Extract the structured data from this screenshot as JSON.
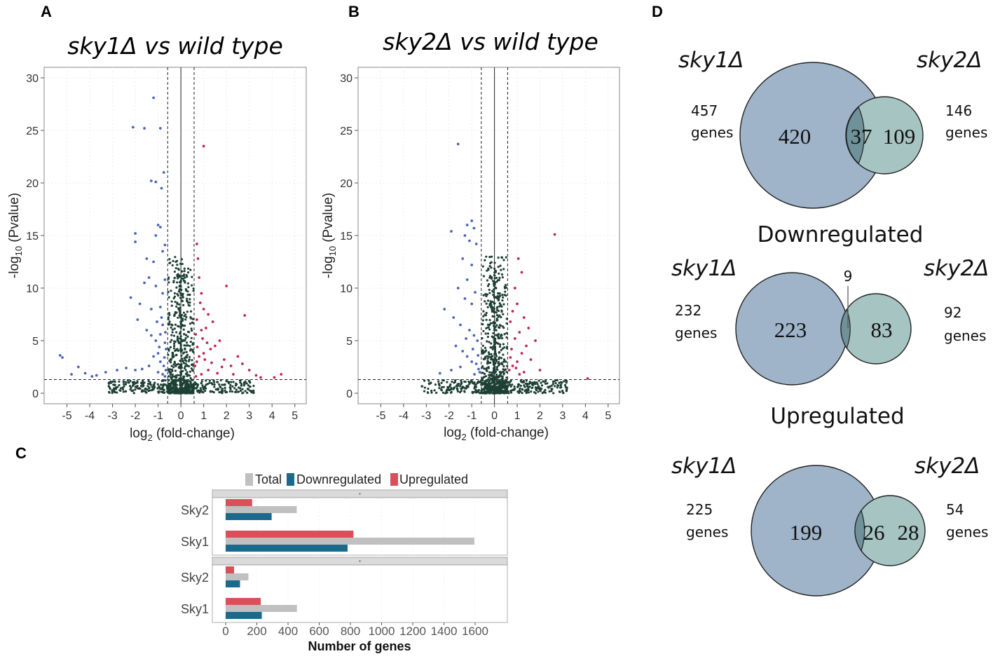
{
  "panels": {
    "a_label": "A",
    "b_label": "B",
    "c_label": "C",
    "d_label": "D"
  },
  "volcano": {
    "a_title": "sky1Δ vs wild type",
    "b_title": "sky2Δ vs wild type",
    "ylabel_pre": "-log",
    "ylabel_sub": "10",
    "ylabel_post": " (Pvalue)",
    "xlabel_pre": "log",
    "xlabel_sub": "2",
    "xlabel_post": " (fold-change)"
  },
  "venn": {
    "all": {
      "left_name": "sky1Δ",
      "right_name": "sky2Δ",
      "left_total": "457",
      "left_unit": "genes",
      "right_total": "146",
      "right_unit": "genes",
      "only_left": "420",
      "overlap": "37",
      "only_right": "109"
    },
    "down": {
      "heading": "Downregulated",
      "left_name": "sky1Δ",
      "right_name": "sky2Δ",
      "left_total": "232",
      "left_unit": "genes",
      "right_total": "92",
      "right_unit": "genes",
      "only_left": "223",
      "overlap": "9",
      "only_right": "83"
    },
    "up": {
      "heading": "Upregulated",
      "left_name": "sky1Δ",
      "right_name": "sky2Δ",
      "left_total": "225",
      "left_unit": "genes",
      "right_total": "54",
      "right_unit": "genes",
      "only_left": "199",
      "overlap": "26",
      "only_right": "28"
    }
  },
  "colors": {
    "down": "#4a65b8",
    "up": "#c2245a",
    "ns": "#1e4034",
    "bar_total": "#c0c0c0",
    "bar_down": "#1a6a8c",
    "bar_up": "#d9505a",
    "venn_left": "#9fb3c9",
    "venn_right": "#a6c4c1",
    "venn_overlap": "#6f9199"
  },
  "chart_data": [
    {
      "type": "scatter",
      "title": "sky1Δ vs wild type",
      "xlabel": "log2 (fold-change)",
      "ylabel": "-log10 (Pvalue)",
      "xlim": [
        -6,
        5.5
      ],
      "ylim": [
        -1,
        31
      ],
      "xticks": [
        "-5",
        "-4",
        "-3",
        "-2",
        "-1",
        "0",
        "1",
        "2",
        "3",
        "4",
        "5"
      ],
      "yticks": [
        "0",
        "5",
        "10",
        "15",
        "20",
        "25",
        "30"
      ],
      "thresholds": {
        "x": [
          -0.58,
          0,
          0.58
        ],
        "y": 1.3
      },
      "series": [
        {
          "name": "Downregulated",
          "points": [
            [
              -1.2,
              28.1
            ],
            [
              -2.1,
              25.3
            ],
            [
              -1.6,
              25.2
            ],
            [
              -0.9,
              25.2
            ],
            [
              -0.75,
              21
            ],
            [
              -1.3,
              20.2
            ],
            [
              -1.1,
              20.1
            ],
            [
              -0.85,
              19.5
            ],
            [
              -2.0,
              15.2
            ],
            [
              -2.0,
              14.4
            ],
            [
              -1.0,
              16
            ],
            [
              -0.9,
              15.8
            ],
            [
              -1.1,
              15
            ],
            [
              -0.7,
              14.1
            ],
            [
              -0.8,
              13.5
            ],
            [
              -1.5,
              12.8
            ],
            [
              -1.2,
              12.5
            ],
            [
              -1.4,
              11
            ],
            [
              -1.6,
              10.5
            ],
            [
              -1.1,
              10.2
            ],
            [
              -2.2,
              9.1
            ],
            [
              -1.8,
              8.5
            ],
            [
              -1.3,
              8
            ],
            [
              -0.9,
              8.2
            ],
            [
              -0.8,
              9.5
            ],
            [
              -0.7,
              10.8
            ],
            [
              -1.9,
              7
            ],
            [
              -1.5,
              6
            ],
            [
              -1.3,
              5.5
            ],
            [
              -1.1,
              5
            ],
            [
              -0.9,
              5.6
            ],
            [
              -0.8,
              6.5
            ],
            [
              -0.7,
              4.8
            ],
            [
              -0.65,
              4.2
            ],
            [
              -1.0,
              3.8
            ],
            [
              -1.2,
              3.5
            ],
            [
              -0.9,
              3
            ],
            [
              -0.75,
              2.6
            ],
            [
              -0.66,
              2.2
            ],
            [
              -1.4,
              2.6
            ],
            [
              -1.7,
              2.3
            ],
            [
              -2.0,
              2.2
            ],
            [
              -2.4,
              2.4
            ],
            [
              -2.8,
              2.2
            ],
            [
              -3.3,
              2.0
            ],
            [
              -3.7,
              1.7
            ],
            [
              -4.2,
              1.9
            ],
            [
              -4.5,
              2.5
            ],
            [
              -5.3,
              3.6
            ],
            [
              -5.2,
              3.4
            ],
            [
              -4.8,
              1.8
            ],
            [
              -3.9,
              1.6
            ],
            [
              -1.0,
              2.0
            ],
            [
              -0.8,
              1.8
            ],
            [
              -0.7,
              1.6
            ],
            [
              -0.95,
              4.4
            ],
            [
              -1.05,
              6.8
            ],
            [
              -0.85,
              7.2
            ],
            [
              -0.72,
              3.4
            ],
            [
              -0.68,
              5.8
            ]
          ]
        },
        {
          "name": "Upregulated",
          "points": [
            [
              1.0,
              23.5
            ],
            [
              0.7,
              14.2
            ],
            [
              0.75,
              12.8
            ],
            [
              0.8,
              11
            ],
            [
              0.9,
              9.5
            ],
            [
              0.85,
              8.6
            ],
            [
              1.0,
              8
            ],
            [
              1.2,
              7.5
            ],
            [
              0.7,
              7
            ],
            [
              1.4,
              6.8
            ],
            [
              1.1,
              6.2
            ],
            [
              0.9,
              6
            ],
            [
              0.65,
              5.6
            ],
            [
              1.7,
              5
            ],
            [
              1.5,
              4.5
            ],
            [
              1.3,
              4.2
            ],
            [
              1.0,
              3.8
            ],
            [
              0.8,
              3.5
            ],
            [
              0.7,
              3
            ],
            [
              0.62,
              2.6
            ],
            [
              1.8,
              2.5
            ],
            [
              2.0,
              10.2
            ],
            [
              1.9,
              3.2
            ],
            [
              2.2,
              2.6
            ],
            [
              2.5,
              3.5
            ],
            [
              2.7,
              2.8
            ],
            [
              2.8,
              7.4
            ],
            [
              3.0,
              2.2
            ],
            [
              3.3,
              1.7
            ],
            [
              3.5,
              1.5
            ],
            [
              4.4,
              1.8
            ],
            [
              4.1,
              1.5
            ],
            [
              1.2,
              2.2
            ],
            [
              0.9,
              1.8
            ],
            [
              0.66,
              1.6
            ],
            [
              1.6,
              1.9
            ],
            [
              0.95,
              5.2
            ],
            [
              1.15,
              4.8
            ],
            [
              0.72,
              4.4
            ],
            [
              1.05,
              3.2
            ],
            [
              2.3,
              1.8
            ],
            [
              1.35,
              2.9
            ]
          ]
        }
      ]
    },
    {
      "type": "scatter",
      "title": "sky2Δ vs wild type",
      "xlabel": "log2 (fold-change)",
      "ylabel": "-log10 (Pvalue)",
      "xlim": [
        -6,
        5.5
      ],
      "ylim": [
        -1,
        31
      ],
      "xticks": [
        "-5",
        "-4",
        "-3",
        "-2",
        "-1",
        "0",
        "1",
        "2",
        "3",
        "4",
        "5"
      ],
      "yticks": [
        "0",
        "5",
        "10",
        "15",
        "20",
        "25",
        "30"
      ],
      "thresholds": {
        "x": [
          -0.58,
          0,
          0.58
        ],
        "y": 1.3
      },
      "series": [
        {
          "name": "Downregulated",
          "points": [
            [
              -1.6,
              23.7
            ],
            [
              -1.0,
              16.4
            ],
            [
              -1.2,
              16
            ],
            [
              -0.9,
              15.7
            ],
            [
              -1.9,
              15.4
            ],
            [
              -1.3,
              15
            ],
            [
              -1.1,
              14.5
            ],
            [
              -0.8,
              14.2
            ],
            [
              -1.4,
              12.8
            ],
            [
              -1.0,
              12.2
            ],
            [
              -1.2,
              10.8
            ],
            [
              -1.6,
              10
            ],
            [
              -0.85,
              9.6
            ],
            [
              -1.3,
              9
            ],
            [
              -1.0,
              8.5
            ],
            [
              -2.2,
              8
            ],
            [
              -1.8,
              7.2
            ],
            [
              -1.5,
              6.5
            ],
            [
              -1.1,
              6
            ],
            [
              -0.9,
              5.5
            ],
            [
              -0.75,
              5
            ],
            [
              -1.7,
              4.5
            ],
            [
              -1.4,
              4
            ],
            [
              -1.2,
              3.5
            ],
            [
              -1.0,
              3
            ],
            [
              -0.8,
              2.8
            ],
            [
              -0.7,
              2.3
            ],
            [
              -0.65,
              2
            ],
            [
              -1.5,
              2.5
            ],
            [
              -1.9,
              2.2
            ],
            [
              -2.4,
              1.9
            ],
            [
              -0.95,
              4.2
            ],
            [
              -0.72,
              3.6
            ],
            [
              -1.25,
              5.2
            ],
            [
              -0.88,
              1.8
            ]
          ]
        },
        {
          "name": "Upregulated",
          "points": [
            [
              2.65,
              15.1
            ],
            [
              1.05,
              12.8
            ],
            [
              1.2,
              11.5
            ],
            [
              0.9,
              10
            ],
            [
              1.0,
              8.5
            ],
            [
              0.8,
              7.8
            ],
            [
              1.3,
              7.2
            ],
            [
              0.7,
              6.8
            ],
            [
              1.5,
              6.2
            ],
            [
              1.1,
              5.8
            ],
            [
              0.9,
              5.2
            ],
            [
              1.8,
              5
            ],
            [
              1.4,
              4.5
            ],
            [
              0.75,
              4.2
            ],
            [
              1.2,
              3.8
            ],
            [
              1.6,
              3.2
            ],
            [
              1.0,
              3
            ],
            [
              0.8,
              2.6
            ],
            [
              0.65,
              2.2
            ],
            [
              1.3,
              2
            ],
            [
              2.0,
              2.2
            ],
            [
              1.1,
              1.8
            ],
            [
              4.1,
              1.4
            ],
            [
              0.95,
              2.4
            ],
            [
              0.7,
              3.4
            ]
          ]
        }
      ]
    },
    {
      "type": "bar",
      "orientation": "horizontal",
      "xlabel": "Number of genes",
      "xlim": [
        0,
        1600
      ],
      "xticks": [
        "0",
        "200",
        "400",
        "600",
        "800",
        "1000",
        "1200",
        "1400",
        "1600"
      ],
      "legend": [
        "Total",
        "Downregulated",
        "Upregulated"
      ],
      "legend_position": "top",
      "facets": [
        {
          "categories": [
            "Sky2",
            "Sky1"
          ],
          "series": [
            {
              "name": "Total",
              "values": [
                456,
                1595
              ]
            },
            {
              "name": "Downregulated",
              "values": [
                295,
                782
              ]
            },
            {
              "name": "Upregulated",
              "values": [
                170,
                820
              ]
            }
          ]
        },
        {
          "categories": [
            "Sky2",
            "Sky1"
          ],
          "series": [
            {
              "name": "Total",
              "values": [
                146,
                457
              ]
            },
            {
              "name": "Downregulated",
              "values": [
                92,
                232
              ]
            },
            {
              "name": "Upregulated",
              "values": [
                54,
                225
              ]
            }
          ]
        }
      ]
    }
  ]
}
